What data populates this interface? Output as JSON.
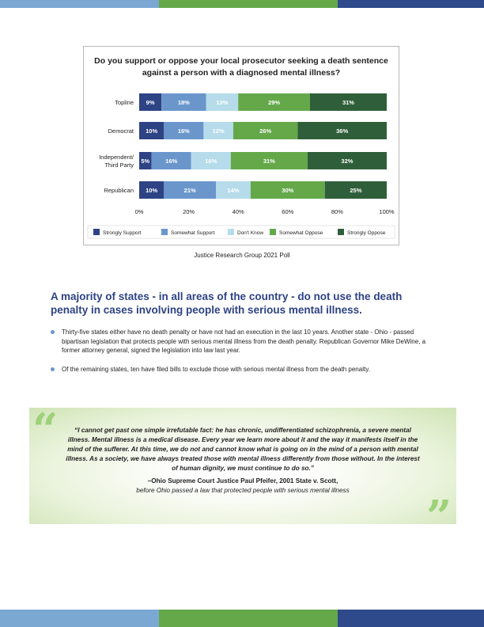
{
  "colors": {
    "strongly_support": "#2e4384",
    "somewhat_support": "#6a96cc",
    "dont_know": "#b6dbea",
    "somewhat_oppose": "#64a84a",
    "strongly_oppose": "#2f5f3a",
    "headline": "#2e4384",
    "band_blue": "#7ba8d3",
    "band_green": "#64a84a",
    "band_navy": "#2f4a8b"
  },
  "chart_data": {
    "type": "bar",
    "orientation": "horizontal-stacked",
    "title": "Do you support or oppose your local prosecutor seeking a death sentence against a person with a diagnosed mental illness?",
    "title_lines": [
      "Do you support or oppose your local prosecutor seeking a death sentence",
      "against a person with a diagnosed mental illness?"
    ],
    "categories": [
      "Topline",
      "Democrat",
      "Independent/ Third Party",
      "Republican"
    ],
    "category_lines": [
      [
        "Topline"
      ],
      [
        "Democrat"
      ],
      [
        "Independent/",
        "Third Party"
      ],
      [
        "Republican"
      ]
    ],
    "series": [
      {
        "name": "Strongly Support",
        "values": [
          9,
          10,
          5,
          10
        ],
        "labels": [
          "9%",
          "10%",
          "5%",
          "10%"
        ]
      },
      {
        "name": "Somewhat Support",
        "values": [
          18,
          16,
          16,
          21
        ],
        "labels": [
          "18%",
          "16%",
          "16%",
          "21%"
        ]
      },
      {
        "name": "Don't Know",
        "values": [
          13,
          12,
          16,
          14
        ],
        "labels": [
          "13%",
          "12%",
          "16%",
          "14%"
        ]
      },
      {
        "name": "Somewhat Oppose",
        "values": [
          29,
          26,
          31,
          30
        ],
        "labels": [
          "29%",
          "26%",
          "31%",
          "30%"
        ]
      },
      {
        "name": "Strongly Oppose",
        "values": [
          31,
          36,
          32,
          25
        ],
        "labels": [
          "31%",
          "36%",
          "32%",
          "25%"
        ]
      }
    ],
    "x_ticks": [
      "0%",
      "20%",
      "40%",
      "60%",
      "80%",
      "100%"
    ],
    "xlim": [
      0,
      100
    ],
    "grid": false,
    "legend_position": "bottom"
  },
  "source": "Justice Research Group 2021 Poll",
  "headline": "A majority of states - in all areas of the country - do not use the death penalty in cases involving people with serious mental illness.",
  "bullets": [
    "Thirty-five states either have no death penalty or have not had an execution in the last 10 years. Another state - Ohio - passed bipartisan legislation that protects people with serious mental illness from the death penalty. Republican Governor Mike DeWine, a former attorney general, signed the legislation into law last year.",
    "Of the remaining states, ten have filed bills to exclude those with serious mental illness from the death penalty."
  ],
  "quote": {
    "text": "“I cannot get past one simple irrefutable fact: he has chronic, undifferentiated schizophrenia, a severe mental illness. Mental illness is a medical disease. Every year we learn more about it and the way it manifests itself in the mind of the sufferer. At this time, we do not and cannot know what is going on in the mind of a person with mental illness. As a society, we have always treated those with mental illness differently from those without. In the interest of human dignity, we must continue to do so.”",
    "attribution": "–Ohio Supreme Court Justice Paul Pfeifer, 2001 State v. Scott,",
    "context": "before Ohio passed a law that protected people with serious mental illness",
    "open_mark": "“",
    "close_mark": "”"
  }
}
